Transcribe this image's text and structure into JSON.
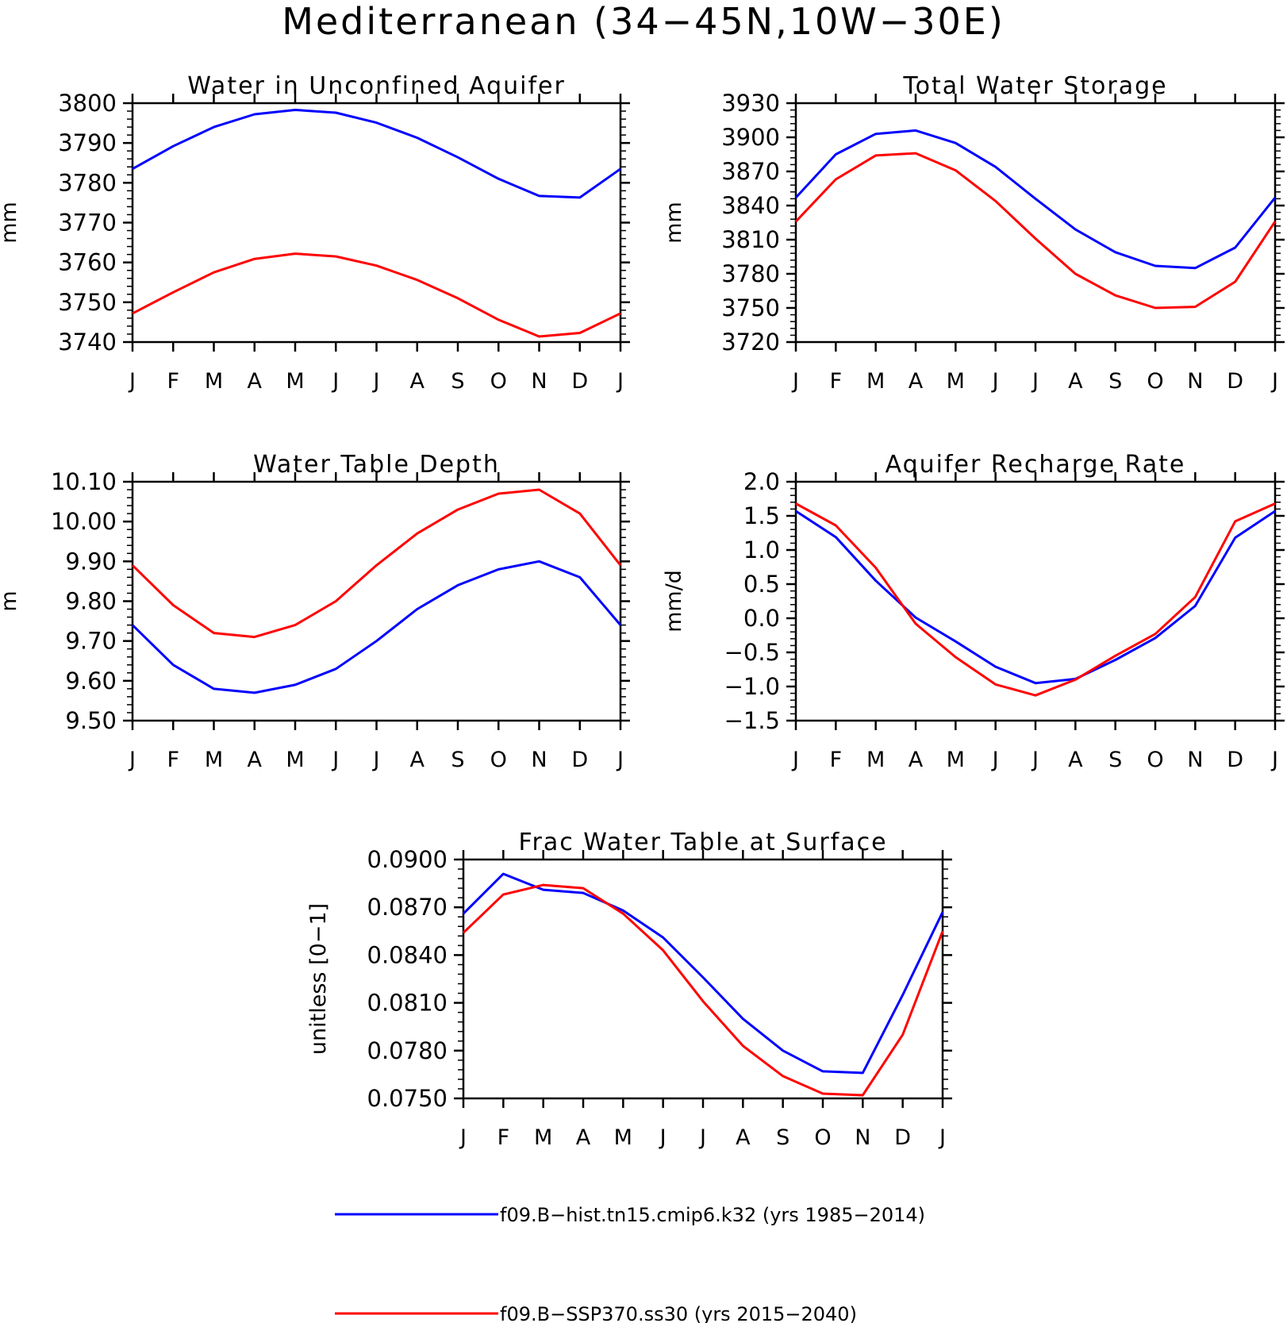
{
  "figure": {
    "title": "Mediterranean (34−45N,10W−30E)"
  },
  "legend": [
    {
      "label": "f09.B−hist.tn15.cmip6.k32 (yrs 1985−2014)",
      "color": "#0000ff"
    },
    {
      "label": "f09.B−SSP370.ss30 (yrs 2015−2040)",
      "color": "#ff0000"
    }
  ],
  "chart_data": [
    {
      "type": "line",
      "title": "Water in Unconfined Aquifer",
      "ylabel": "mm",
      "xlabel": "",
      "categories": [
        "J",
        "F",
        "M",
        "A",
        "M",
        "J",
        "J",
        "A",
        "S",
        "O",
        "N",
        "D",
        "J"
      ],
      "ylim": [
        3740,
        3800
      ],
      "yticks": [
        "3740",
        "3750",
        "3760",
        "3770",
        "3780",
        "3790",
        "3800"
      ],
      "grid": false,
      "series": [
        {
          "name": "f09.B−hist.tn15.cmip6.k32 (yrs 1985−2014)",
          "color": "#0000ff",
          "values": [
            3783.5,
            3789.2,
            3794.0,
            3797.2,
            3798.3,
            3797.6,
            3795.1,
            3791.3,
            3786.4,
            3781.0,
            3776.7,
            3776.3,
            3783.5
          ]
        },
        {
          "name": "f09.B−SSP370.ss30 (yrs 2015−2040)",
          "color": "#ff0000",
          "values": [
            3747.2,
            3752.5,
            3757.5,
            3760.9,
            3762.2,
            3761.5,
            3759.2,
            3755.6,
            3751.0,
            3745.6,
            3741.4,
            3742.3,
            3747.2
          ]
        }
      ]
    },
    {
      "type": "line",
      "title": "Total Water Storage",
      "ylabel": "mm",
      "xlabel": "",
      "categories": [
        "J",
        "F",
        "M",
        "A",
        "M",
        "J",
        "J",
        "A",
        "S",
        "O",
        "N",
        "D",
        "J"
      ],
      "ylim": [
        3720,
        3930
      ],
      "yticks": [
        "3720",
        "3750",
        "3780",
        "3810",
        "3840",
        "3870",
        "3900",
        "3930"
      ],
      "grid": false,
      "series": [
        {
          "name": "f09.B−hist.tn15.cmip6.k32 (yrs 1985−2014)",
          "color": "#0000ff",
          "values": [
            3847,
            3885,
            3903,
            3906,
            3895,
            3874,
            3846,
            3819,
            3799,
            3787,
            3785,
            3803,
            3847
          ]
        },
        {
          "name": "f09.B−SSP370.ss30 (yrs 2015−2040)",
          "color": "#ff0000",
          "values": [
            3826,
            3863,
            3884,
            3886,
            3871,
            3844,
            3811,
            3780,
            3761,
            3750,
            3751,
            3773,
            3826
          ]
        }
      ]
    },
    {
      "type": "line",
      "title": "Water Table Depth",
      "ylabel": "m",
      "xlabel": "",
      "categories": [
        "J",
        "F",
        "M",
        "A",
        "M",
        "J",
        "J",
        "A",
        "S",
        "O",
        "N",
        "D",
        "J"
      ],
      "ylim": [
        9.5,
        10.1
      ],
      "yticks": [
        "9.50",
        "9.60",
        "9.70",
        "9.80",
        "9.90",
        "10.00",
        "10.10"
      ],
      "grid": false,
      "series": [
        {
          "name": "f09.B−hist.tn15.cmip6.k32 (yrs 1985−2014)",
          "color": "#0000ff",
          "values": [
            9.74,
            9.64,
            9.58,
            9.57,
            9.59,
            9.63,
            9.7,
            9.78,
            9.84,
            9.88,
            9.9,
            9.86,
            9.74
          ]
        },
        {
          "name": "f09.B−SSP370.ss30 (yrs 2015−2040)",
          "color": "#ff0000",
          "values": [
            9.89,
            9.79,
            9.72,
            9.71,
            9.74,
            9.8,
            9.89,
            9.97,
            10.03,
            10.07,
            10.08,
            10.02,
            9.89
          ]
        }
      ]
    },
    {
      "type": "line",
      "title": "Aquifer Recharge Rate",
      "ylabel": "mm/d",
      "xlabel": "",
      "categories": [
        "J",
        "F",
        "M",
        "A",
        "M",
        "J",
        "J",
        "A",
        "S",
        "O",
        "N",
        "D",
        "J"
      ],
      "ylim": [
        -1.5,
        2.0
      ],
      "yticks": [
        "−1.5",
        "−1.0",
        "−0.5",
        "0.0",
        "0.5",
        "1.0",
        "1.5",
        "2.0"
      ],
      "grid": false,
      "series": [
        {
          "name": "f09.B−hist.tn15.cmip6.k32 (yrs 1985−2014)",
          "color": "#0000ff",
          "values": [
            1.57,
            1.19,
            0.55,
            0.01,
            -0.34,
            -0.71,
            -0.95,
            -0.89,
            -0.61,
            -0.29,
            0.18,
            1.18,
            1.57
          ]
        },
        {
          "name": "f09.B−SSP370.ss30 (yrs 2015−2040)",
          "color": "#ff0000",
          "values": [
            1.68,
            1.36,
            0.74,
            -0.08,
            -0.57,
            -0.97,
            -1.13,
            -0.9,
            -0.55,
            -0.23,
            0.31,
            1.42,
            1.68
          ]
        }
      ]
    },
    {
      "type": "line",
      "title": "Frac Water Table at Surface",
      "ylabel": "unitless [0−1]",
      "xlabel": "",
      "categories": [
        "J",
        "F",
        "M",
        "A",
        "M",
        "J",
        "J",
        "A",
        "S",
        "O",
        "N",
        "D",
        "J"
      ],
      "ylim": [
        0.075,
        0.09
      ],
      "yticks": [
        "0.0750",
        "0.0780",
        "0.0810",
        "0.0840",
        "0.0870",
        "0.0900"
      ],
      "grid": false,
      "series": [
        {
          "name": "f09.B−hist.tn15.cmip6.k32 (yrs 1985−2014)",
          "color": "#0000ff",
          "values": [
            0.0866,
            0.0891,
            0.0881,
            0.0879,
            0.0868,
            0.0851,
            0.0826,
            0.08,
            0.078,
            0.0767,
            0.0766,
            0.0815,
            0.0867
          ]
        },
        {
          "name": "f09.B−SSP370.ss30 (yrs 2015−2040)",
          "color": "#ff0000",
          "values": [
            0.0854,
            0.0878,
            0.0884,
            0.0882,
            0.0866,
            0.0843,
            0.0811,
            0.0783,
            0.0764,
            0.0753,
            0.0752,
            0.079,
            0.0855
          ]
        }
      ]
    }
  ]
}
